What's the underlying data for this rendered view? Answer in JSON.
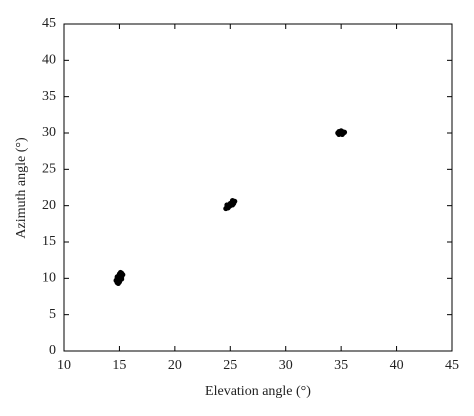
{
  "chart_data": {
    "type": "scatter",
    "xlabel": "Elevation angle (°)",
    "ylabel": "Azimuth angle (°)",
    "xlim": [
      10,
      45
    ],
    "ylim": [
      0,
      45
    ],
    "xticks": [
      10,
      15,
      20,
      25,
      30,
      35,
      40,
      45
    ],
    "yticks": [
      0,
      5,
      10,
      15,
      20,
      25,
      30,
      35,
      40,
      45
    ],
    "grid": false,
    "series": [
      {
        "color": "#000000",
        "x": [
          14.8,
          14.9,
          15.0,
          14.7,
          14.9,
          15.1,
          14.8,
          15.0,
          15.2,
          14.9,
          15.1,
          15.3,
          15.0,
          15.2,
          15.1,
          14.8,
          15.2,
          24.6,
          24.7,
          24.8,
          24.9,
          25.0,
          24.8,
          25.1,
          25.2,
          25.0,
          25.2,
          25.3,
          25.4,
          25.2,
          24.7,
          25.3,
          34.7,
          34.8,
          34.9,
          35.0,
          35.1,
          35.2,
          35.3,
          35.0,
          34.8,
          35.1
        ],
        "values": [
          9.4,
          9.3,
          9.5,
          9.7,
          9.8,
          9.9,
          10.0,
          10.1,
          10.2,
          10.3,
          10.4,
          10.5,
          10.6,
          10.7,
          10.8,
          10.2,
          9.9,
          19.6,
          19.8,
          19.7,
          19.9,
          20.0,
          20.0,
          20.2,
          20.1,
          20.3,
          20.4,
          20.5,
          20.6,
          20.7,
          20.1,
          20.3,
          30.0,
          29.8,
          30.1,
          29.9,
          30.2,
          30.0,
          30.1,
          30.3,
          30.2,
          29.8
        ]
      }
    ]
  }
}
